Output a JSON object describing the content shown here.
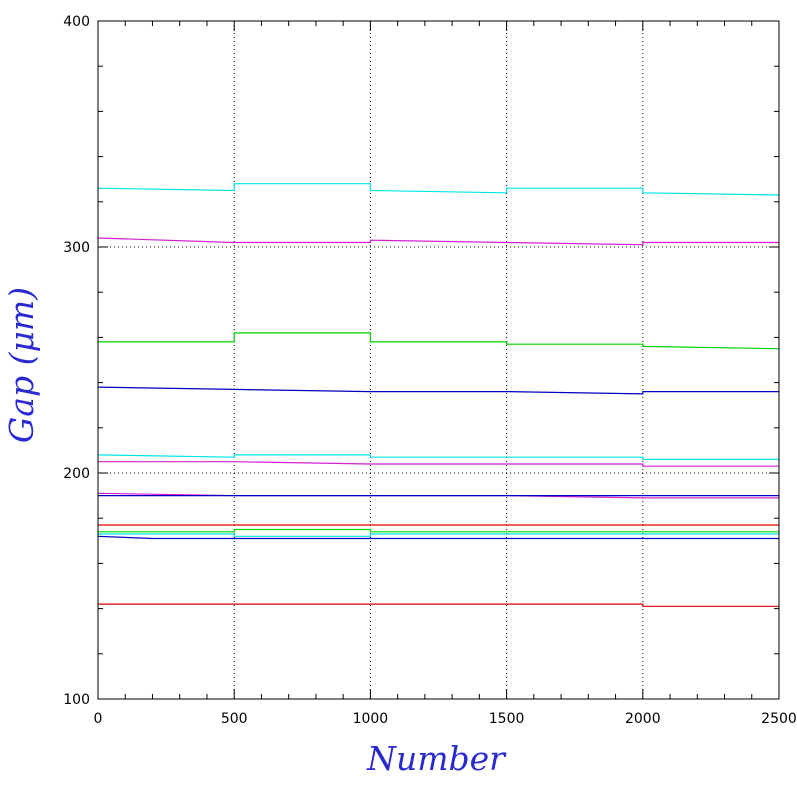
{
  "chart_data": {
    "type": "line",
    "title": "",
    "xlabel": "Number",
    "ylabel": "Gap (μm)",
    "xlim": [
      0,
      2500
    ],
    "ylim": [
      100,
      400
    ],
    "x_ticks": [
      "0",
      "500",
      "1000",
      "1500",
      "2000",
      "2500"
    ],
    "y_ticks": [
      "100",
      "200",
      "300",
      "400"
    ],
    "x_minor_step": 100,
    "y_minor_step": 20,
    "grid": "dotted vertical lines at x = 500, 1000, 1500, 2000",
    "reference_lines": [
      {
        "y": 300,
        "style": "dotted"
      },
      {
        "y": 200,
        "style": "dotted"
      }
    ],
    "series": [
      {
        "color": "#00e5e5",
        "points": [
          [
            0,
            326
          ],
          [
            500,
            325
          ],
          [
            500,
            328
          ],
          [
            1000,
            328
          ],
          [
            1000,
            325
          ],
          [
            1500,
            324
          ],
          [
            1500,
            326
          ],
          [
            2000,
            326
          ],
          [
            2000,
            324
          ],
          [
            2500,
            323
          ]
        ]
      },
      {
        "color": "#d020d0",
        "points": [
          [
            0,
            304
          ],
          [
            500,
            302
          ],
          [
            1000,
            302
          ],
          [
            1000,
            303
          ],
          [
            1500,
            302
          ],
          [
            2000,
            301
          ],
          [
            2000,
            302
          ],
          [
            2500,
            302
          ]
        ]
      },
      {
        "color": "#00d000",
        "points": [
          [
            0,
            258
          ],
          [
            500,
            258
          ],
          [
            500,
            262
          ],
          [
            1000,
            262
          ],
          [
            1000,
            258
          ],
          [
            1500,
            258
          ],
          [
            1500,
            257
          ],
          [
            2000,
            257
          ],
          [
            2000,
            256
          ],
          [
            2500,
            255
          ]
        ]
      },
      {
        "color": "#0000c0",
        "points": [
          [
            0,
            238
          ],
          [
            500,
            237
          ],
          [
            1000,
            236
          ],
          [
            1500,
            236
          ],
          [
            2000,
            235
          ],
          [
            2000,
            236
          ],
          [
            2500,
            236
          ]
        ]
      },
      {
        "color": "#00e5e5",
        "points": [
          [
            0,
            208
          ],
          [
            500,
            207
          ],
          [
            500,
            208
          ],
          [
            1000,
            208
          ],
          [
            1000,
            207
          ],
          [
            1500,
            207
          ],
          [
            2000,
            207
          ],
          [
            2000,
            206
          ],
          [
            2500,
            206
          ]
        ]
      },
      {
        "color": "#d020d0",
        "points": [
          [
            0,
            205
          ],
          [
            500,
            205
          ],
          [
            1000,
            204
          ],
          [
            1500,
            204
          ],
          [
            2000,
            204
          ],
          [
            2000,
            203
          ],
          [
            2500,
            203
          ]
        ]
      },
      {
        "color": "#d020d0",
        "points": [
          [
            0,
            191
          ],
          [
            500,
            190
          ],
          [
            1000,
            190
          ],
          [
            1500,
            190
          ],
          [
            2000,
            189
          ],
          [
            2500,
            189
          ]
        ]
      },
      {
        "color": "#0000c0",
        "points": [
          [
            0,
            190
          ],
          [
            500,
            190
          ],
          [
            1000,
            190
          ],
          [
            1500,
            190
          ],
          [
            2000,
            190
          ],
          [
            2500,
            190
          ]
        ]
      },
      {
        "color": "#e00000",
        "points": [
          [
            0,
            177
          ],
          [
            500,
            177
          ],
          [
            1000,
            177
          ],
          [
            1500,
            177
          ],
          [
            2000,
            177
          ],
          [
            2500,
            177
          ]
        ]
      },
      {
        "color": "#00d000",
        "points": [
          [
            0,
            174
          ],
          [
            500,
            174
          ],
          [
            500,
            175
          ],
          [
            1000,
            175
          ],
          [
            1000,
            174
          ],
          [
            1500,
            174
          ],
          [
            2000,
            174
          ],
          [
            2500,
            174
          ]
        ]
      },
      {
        "color": "#00e5e5",
        "points": [
          [
            0,
            173
          ],
          [
            500,
            173
          ],
          [
            500,
            172
          ],
          [
            1000,
            172
          ],
          [
            1000,
            173
          ],
          [
            1500,
            173
          ],
          [
            2000,
            173
          ],
          [
            2500,
            173
          ]
        ]
      },
      {
        "color": "#0000c0",
        "points": [
          [
            0,
            172
          ],
          [
            200,
            171
          ],
          [
            500,
            171
          ],
          [
            1000,
            171
          ],
          [
            1500,
            171
          ],
          [
            2000,
            171
          ],
          [
            2500,
            171
          ]
        ]
      },
      {
        "color": "#e00000",
        "points": [
          [
            0,
            142
          ],
          [
            500,
            142
          ],
          [
            1000,
            142
          ],
          [
            1500,
            142
          ],
          [
            2000,
            142
          ],
          [
            2000,
            141
          ],
          [
            2500,
            141
          ]
        ]
      }
    ]
  }
}
